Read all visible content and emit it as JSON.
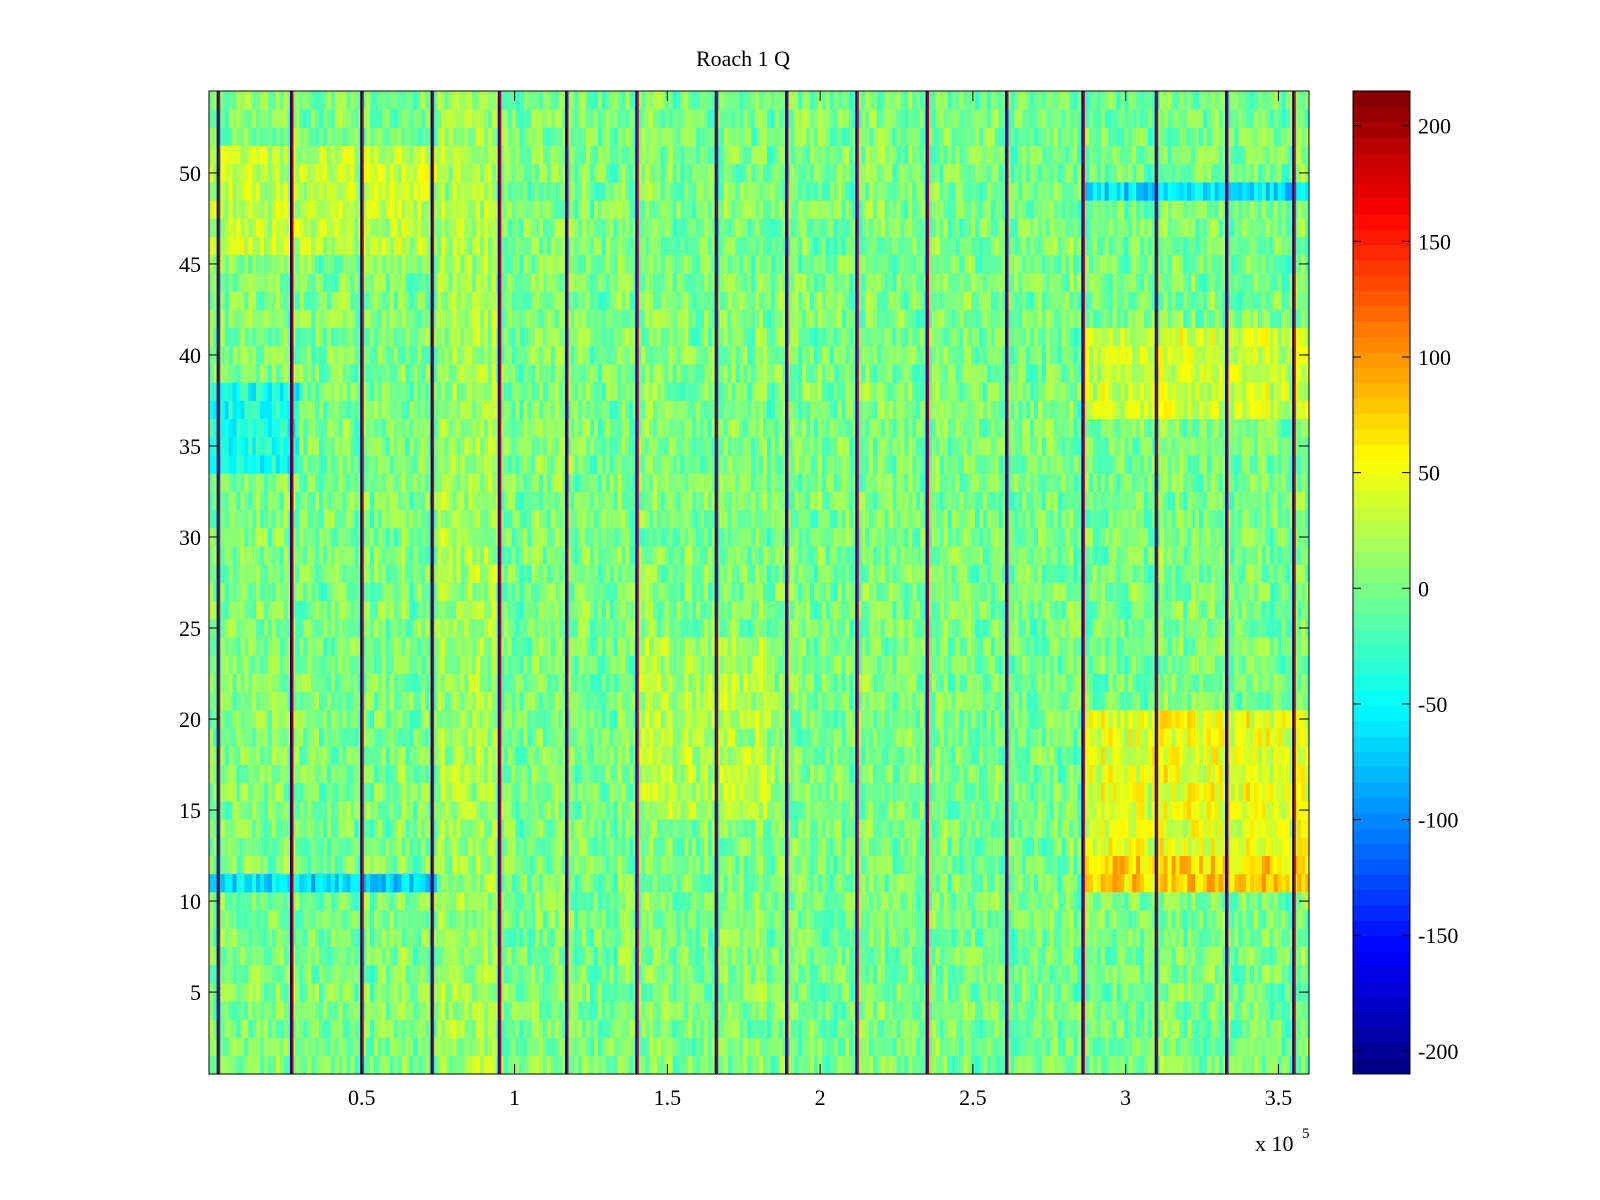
{
  "chart_data": {
    "type": "heatmap",
    "title": "Roach 1 Q",
    "xlabel": "",
    "ylabel": "",
    "x_range": [
      0,
      360000
    ],
    "y_range": [
      0.5,
      54.5
    ],
    "rows": 54,
    "x_ticks": [
      {
        "value": 50000,
        "label": "0.5"
      },
      {
        "value": 100000,
        "label": "1"
      },
      {
        "value": 150000,
        "label": "1.5"
      },
      {
        "value": 200000,
        "label": "2"
      },
      {
        "value": 250000,
        "label": "2.5"
      },
      {
        "value": 300000,
        "label": "3"
      },
      {
        "value": 350000,
        "label": "3.5"
      }
    ],
    "x_exponent": {
      "base": "x 10",
      "exp": "5"
    },
    "y_ticks": [
      {
        "value": 5,
        "label": "5"
      },
      {
        "value": 10,
        "label": "10"
      },
      {
        "value": 15,
        "label": "15"
      },
      {
        "value": 20,
        "label": "20"
      },
      {
        "value": 25,
        "label": "25"
      },
      {
        "value": 30,
        "label": "30"
      },
      {
        "value": 35,
        "label": "35"
      },
      {
        "value": 40,
        "label": "40"
      },
      {
        "value": 45,
        "label": "45"
      },
      {
        "value": 50,
        "label": "50"
      }
    ],
    "colorbar": {
      "range": [
        -210,
        215
      ],
      "colormap": "jet",
      "ticks": [
        {
          "value": 200,
          "label": "200"
        },
        {
          "value": 150,
          "label": "150"
        },
        {
          "value": 100,
          "label": "100"
        },
        {
          "value": 50,
          "label": "50"
        },
        {
          "value": 0,
          "label": "0"
        },
        {
          "value": -50,
          "label": "-50"
        },
        {
          "value": -100,
          "label": "-100"
        },
        {
          "value": -150,
          "label": "-150"
        },
        {
          "value": -200,
          "label": "-200"
        }
      ]
    },
    "baseline_value": 0,
    "segment_boundaries": [
      3000,
      27000,
      50000,
      73000,
      95000,
      117000,
      140000,
      166000,
      189000,
      212000,
      235000,
      261000,
      286000,
      310000,
      333000,
      355000
    ],
    "regions": [
      {
        "x": [
          287000,
          360000
        ],
        "y": [
          37,
          41
        ],
        "value": 35
      },
      {
        "x": [
          287000,
          360000
        ],
        "y": [
          12.5,
          20.5
        ],
        "value": 45
      },
      {
        "x": [
          287000,
          360000
        ],
        "y": [
          10.5,
          12.5
        ],
        "value": 75
      },
      {
        "x": [
          287000,
          360000
        ],
        "y": [
          48.5,
          49.5
        ],
        "value": -60
      },
      {
        "x": [
          0,
          75000
        ],
        "y": [
          10.5,
          11.5
        ],
        "value": -65
      },
      {
        "x": [
          0,
          30000
        ],
        "y": [
          33.5,
          38.5
        ],
        "value": -45
      },
      {
        "x": [
          0,
          75000
        ],
        "y": [
          45.5,
          51.5
        ],
        "value": 28
      },
      {
        "x": [
          75000,
          95000
        ],
        "y": [
          0.5,
          54.5
        ],
        "value": 18
      },
      {
        "x": [
          140000,
          185000
        ],
        "y": [
          14.5,
          24.5
        ],
        "value": 22
      }
    ]
  }
}
